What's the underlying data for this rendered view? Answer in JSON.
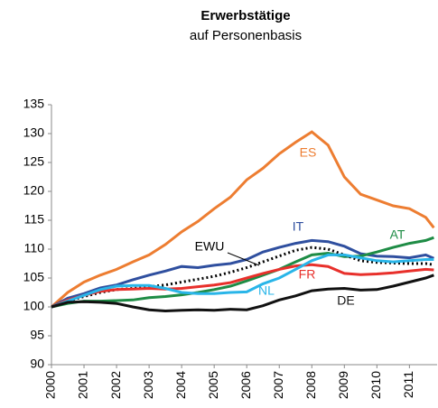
{
  "chart_data": {
    "type": "line",
    "title": "Erwerbstätige",
    "subtitle": "auf Personenbasis",
    "x": [
      2000,
      2000.5,
      2001,
      2001.5,
      2002,
      2002.5,
      2003,
      2003.5,
      2004,
      2004.5,
      2005,
      2005.5,
      2006,
      2006.5,
      2007,
      2007.5,
      2008,
      2008.5,
      2009,
      2009.5,
      2010,
      2010.5,
      2011,
      2011.5,
      2011.75
    ],
    "xlim": [
      2000,
      2011.85
    ],
    "xticks": [
      2000,
      2001,
      2002,
      2003,
      2004,
      2005,
      2006,
      2007,
      2008,
      2009,
      2010,
      2011
    ],
    "ylim": [
      90,
      135
    ],
    "yticks": [
      90,
      95,
      100,
      105,
      110,
      115,
      120,
      125,
      130,
      135
    ],
    "series": [
      {
        "name": "ES",
        "color": "#ed7d31",
        "values": [
          100,
          102.5,
          104.3,
          105.5,
          106.5,
          107.8,
          109,
          110.8,
          113,
          114.8,
          117,
          119,
          122,
          124,
          126.5,
          128.5,
          130.3,
          128,
          122.5,
          119.5,
          118.5,
          117.5,
          117,
          115.5,
          113.7
        ]
      },
      {
        "name": "IT",
        "color": "#2f4f9f",
        "values": [
          100,
          101.5,
          102.3,
          103.3,
          103.8,
          104.7,
          105.5,
          106.2,
          107,
          106.8,
          107.2,
          107.5,
          108.2,
          109.5,
          110.3,
          111,
          111.5,
          111.3,
          110.5,
          109.2,
          108.8,
          108.7,
          108.5,
          109,
          108.4
        ]
      },
      {
        "name": "AT",
        "color": "#1e8c45",
        "values": [
          100,
          100.6,
          101,
          101,
          101.1,
          101.2,
          101.6,
          101.8,
          102.1,
          102.5,
          103,
          103.6,
          104.5,
          105.5,
          106.5,
          107.8,
          109,
          109.3,
          108.7,
          108.8,
          109.5,
          110.3,
          111,
          111.5,
          112
        ]
      },
      {
        "name": "EWU",
        "color": "#000000",
        "dotted": true,
        "values": [
          100,
          101,
          101.8,
          102.5,
          103,
          103.2,
          103.5,
          103.8,
          104.3,
          104.8,
          105.3,
          106,
          106.8,
          107.8,
          108.8,
          109.8,
          110.3,
          110,
          109,
          108,
          107.7,
          107.6,
          107.5,
          107.5,
          107.3
        ]
      },
      {
        "name": "FR",
        "color": "#e8302b",
        "values": [
          100,
          101.2,
          102,
          102.7,
          103,
          103.1,
          103.2,
          103.1,
          103.2,
          103.5,
          103.8,
          104.2,
          105,
          105.8,
          106.5,
          107.1,
          107.3,
          107,
          105.8,
          105.6,
          105.7,
          105.9,
          106.2,
          106.5,
          106.4
        ]
      },
      {
        "name": "NL",
        "color": "#29b5e8",
        "values": [
          100,
          101,
          102,
          103,
          103.6,
          103.7,
          103.7,
          103.2,
          102.5,
          102.3,
          102.3,
          102.5,
          102.6,
          104,
          105,
          106.5,
          108,
          109,
          109,
          108.5,
          108,
          107.8,
          108,
          108.2,
          108.2
        ]
      },
      {
        "name": "DE",
        "color": "#111111",
        "values": [
          100,
          100.8,
          100.9,
          100.8,
          100.6,
          100,
          99.5,
          99.3,
          99.4,
          99.5,
          99.4,
          99.6,
          99.5,
          100.2,
          101.2,
          101.9,
          102.8,
          103.1,
          103.2,
          102.9,
          103,
          103.6,
          104.3,
          105,
          105.5
        ]
      }
    ]
  }
}
